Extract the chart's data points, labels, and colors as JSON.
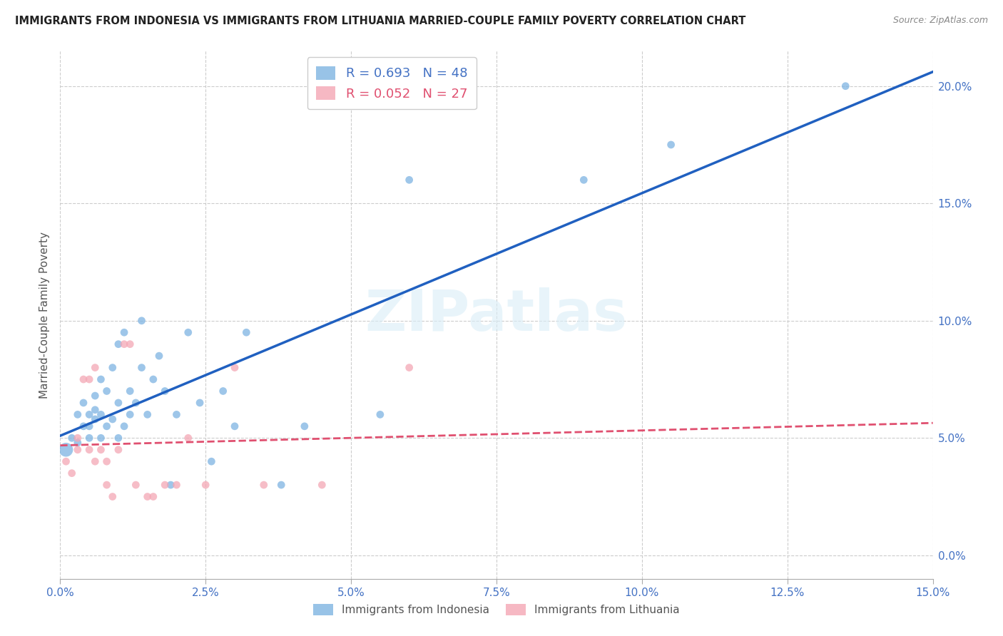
{
  "title": "IMMIGRANTS FROM INDONESIA VS IMMIGRANTS FROM LITHUANIA MARRIED-COUPLE FAMILY POVERTY CORRELATION CHART",
  "source": "Source: ZipAtlas.com",
  "ylabel_label": "Married-Couple Family Poverty",
  "xlim": [
    0.0,
    0.15
  ],
  "ylim": [
    -0.01,
    0.215
  ],
  "xticks": [
    0.0,
    0.025,
    0.05,
    0.075,
    0.1,
    0.125,
    0.15
  ],
  "yticks_right": [
    0.0,
    0.05,
    0.1,
    0.15,
    0.2
  ],
  "indonesia_color": "#7EB4E2",
  "lithuania_color": "#F4A7B5",
  "indonesia_line_color": "#2060C0",
  "lithuania_line_color": "#E05070",
  "watermark": "ZIPatlas",
  "indonesia_x": [
    0.001,
    0.002,
    0.003,
    0.003,
    0.004,
    0.004,
    0.005,
    0.005,
    0.005,
    0.006,
    0.006,
    0.006,
    0.007,
    0.007,
    0.007,
    0.008,
    0.008,
    0.009,
    0.009,
    0.01,
    0.01,
    0.01,
    0.011,
    0.011,
    0.012,
    0.012,
    0.013,
    0.014,
    0.014,
    0.015,
    0.016,
    0.017,
    0.018,
    0.019,
    0.02,
    0.022,
    0.024,
    0.026,
    0.028,
    0.03,
    0.032,
    0.038,
    0.042,
    0.055,
    0.06,
    0.09,
    0.105,
    0.135
  ],
  "indonesia_y": [
    0.045,
    0.05,
    0.048,
    0.06,
    0.055,
    0.065,
    0.05,
    0.055,
    0.06,
    0.058,
    0.062,
    0.068,
    0.05,
    0.06,
    0.075,
    0.055,
    0.07,
    0.058,
    0.08,
    0.05,
    0.065,
    0.09,
    0.055,
    0.095,
    0.06,
    0.07,
    0.065,
    0.08,
    0.1,
    0.06,
    0.075,
    0.085,
    0.07,
    0.03,
    0.06,
    0.095,
    0.065,
    0.04,
    0.07,
    0.055,
    0.095,
    0.03,
    0.055,
    0.06,
    0.16,
    0.16,
    0.175,
    0.2
  ],
  "indonesia_sizes": [
    200,
    60,
    60,
    60,
    60,
    60,
    60,
    60,
    60,
    60,
    60,
    60,
    60,
    60,
    60,
    60,
    60,
    60,
    60,
    60,
    60,
    60,
    60,
    60,
    60,
    60,
    60,
    60,
    60,
    60,
    60,
    60,
    60,
    60,
    60,
    60,
    60,
    60,
    60,
    60,
    60,
    60,
    60,
    60,
    60,
    60,
    60,
    60
  ],
  "lithuania_x": [
    0.001,
    0.002,
    0.003,
    0.003,
    0.004,
    0.005,
    0.005,
    0.006,
    0.006,
    0.007,
    0.008,
    0.008,
    0.009,
    0.01,
    0.011,
    0.012,
    0.013,
    0.015,
    0.016,
    0.018,
    0.02,
    0.022,
    0.025,
    0.03,
    0.035,
    0.045,
    0.06
  ],
  "lithuania_y": [
    0.04,
    0.035,
    0.045,
    0.05,
    0.075,
    0.045,
    0.075,
    0.04,
    0.08,
    0.045,
    0.04,
    0.03,
    0.025,
    0.045,
    0.09,
    0.09,
    0.03,
    0.025,
    0.025,
    0.03,
    0.03,
    0.05,
    0.03,
    0.08,
    0.03,
    0.03,
    0.08
  ],
  "lithuania_sizes": [
    60,
    60,
    60,
    60,
    60,
    60,
    60,
    60,
    60,
    60,
    60,
    60,
    60,
    60,
    60,
    60,
    60,
    60,
    60,
    60,
    60,
    60,
    60,
    60,
    60,
    60,
    60
  ]
}
